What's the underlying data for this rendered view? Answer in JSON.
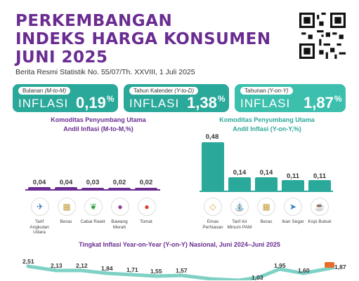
{
  "header": {
    "title_line1": "PERKEMBANGAN",
    "title_line2": "INDEKS HARGA KONSUMEN",
    "title_line3": "JUNI 2025",
    "subtitle": "Berita Resmi Statistik No. 55/07/Th. XXVIII, 1 Juli 2025"
  },
  "cards": [
    {
      "label": "Bulanan",
      "label_em": "(M-to-M)",
      "inflasi": "INFLASI",
      "value": "0,19",
      "unit": "%",
      "color": "#2aa89a"
    },
    {
      "label": "Tahun Kalender",
      "label_em": "(Y-to-D)",
      "inflasi": "INFLASI",
      "value": "1,38",
      "unit": "%",
      "color": "#2aa89a"
    },
    {
      "label": "Tahunan",
      "label_em": "(Y-on-Y)",
      "inflasi": "INFLASI",
      "value": "1,87",
      "unit": "%",
      "color": "#2aa89a"
    }
  ],
  "mtm": {
    "title_line1": "Komoditas Penyumbang Utama",
    "title_line2": "Andil Inflasi (M-to-M,%)",
    "items": [
      {
        "value": "0,04",
        "label": "Tarif Angkutan Udara",
        "icon": "airplane-icon"
      },
      {
        "value": "0,04",
        "label": "Beras",
        "icon": "rice-icon"
      },
      {
        "value": "0,03",
        "label": "Cabai Rawit",
        "icon": "chili-icon"
      },
      {
        "value": "0,02",
        "label": "Bawang Merah",
        "icon": "shallot-icon"
      },
      {
        "value": "0,02",
        "label": "Tomat",
        "icon": "tomato-icon"
      }
    ]
  },
  "yoy": {
    "title_line1": "Komoditas Penyumbang Utama",
    "title_line2": "Andil Inflasi (Y-on-Y,%)",
    "items": [
      {
        "value": "0,48",
        "label": "Emas Perhiasan",
        "icon": "jewelry-icon"
      },
      {
        "value": "0,14",
        "label": "Tarif Air Minum PAM",
        "icon": "water-tap-icon"
      },
      {
        "value": "0,14",
        "label": "Beras",
        "icon": "rice-icon"
      },
      {
        "value": "0,11",
        "label": "Ikan Segar",
        "icon": "fish-icon"
      },
      {
        "value": "0,11",
        "label": "Kopi Bubuk",
        "icon": "coffee-icon"
      }
    ]
  },
  "trend": {
    "title": "Tingkat Inflasi Year-on-Year (Y-on-Y) Nasional, Juni 2024–Juni 2025",
    "points": [
      "2,51",
      "2,13",
      "2,12",
      "1,84",
      "1,71",
      "1,55",
      "1,57",
      "",
      "",
      "1,03",
      "1,95",
      "1,60",
      "1,87"
    ]
  },
  "colors": {
    "purple": "#6a2c91",
    "teal": "#2aa89a",
    "yoy_card": "#3dbfae"
  }
}
